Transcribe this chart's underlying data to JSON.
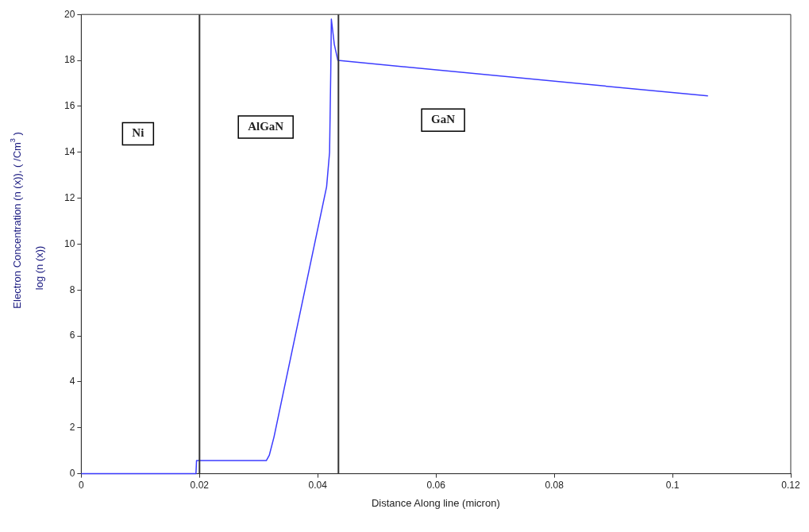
{
  "chart_data": {
    "type": "line",
    "xlabel": "Distance Along line (micron)",
    "ylabel": "Electron Concentration (n (x)), ( /Cm$^{3}$ )",
    "x": [
      0,
      0.0194,
      0.0195,
      0.0313,
      0.0318,
      0.0326,
      0.0415,
      0.042,
      0.0422,
      0.0423,
      0.0428,
      0.0434,
      0.106
    ],
    "series": [
      {
        "color": "#3c3cff",
        "values": [
          0,
          0,
          0.57,
          0.57,
          0.8,
          1.6,
          12.5,
          14,
          17.5,
          19.8,
          18.7,
          18,
          16.45
        ]
      }
    ],
    "xlim": [
      0,
      0.12
    ],
    "xticks": [
      0,
      0.02,
      0.04,
      0.06,
      0.08,
      0.1,
      0.12
    ],
    "ylim": [
      0,
      20
    ],
    "yticks": [
      0,
      2,
      4,
      6,
      8,
      10,
      12,
      14,
      16,
      18,
      20
    ],
    "ref_lines": [
      {
        "axis": "x",
        "value": 0.02,
        "color": "#333333"
      },
      {
        "axis": "x",
        "value": 0.0435,
        "color": "#333333"
      }
    ],
    "annotations": [
      "log (n (x))",
      "Ni",
      "AlGaN",
      "GaN"
    ],
    "legend": false,
    "grid": false
  }
}
